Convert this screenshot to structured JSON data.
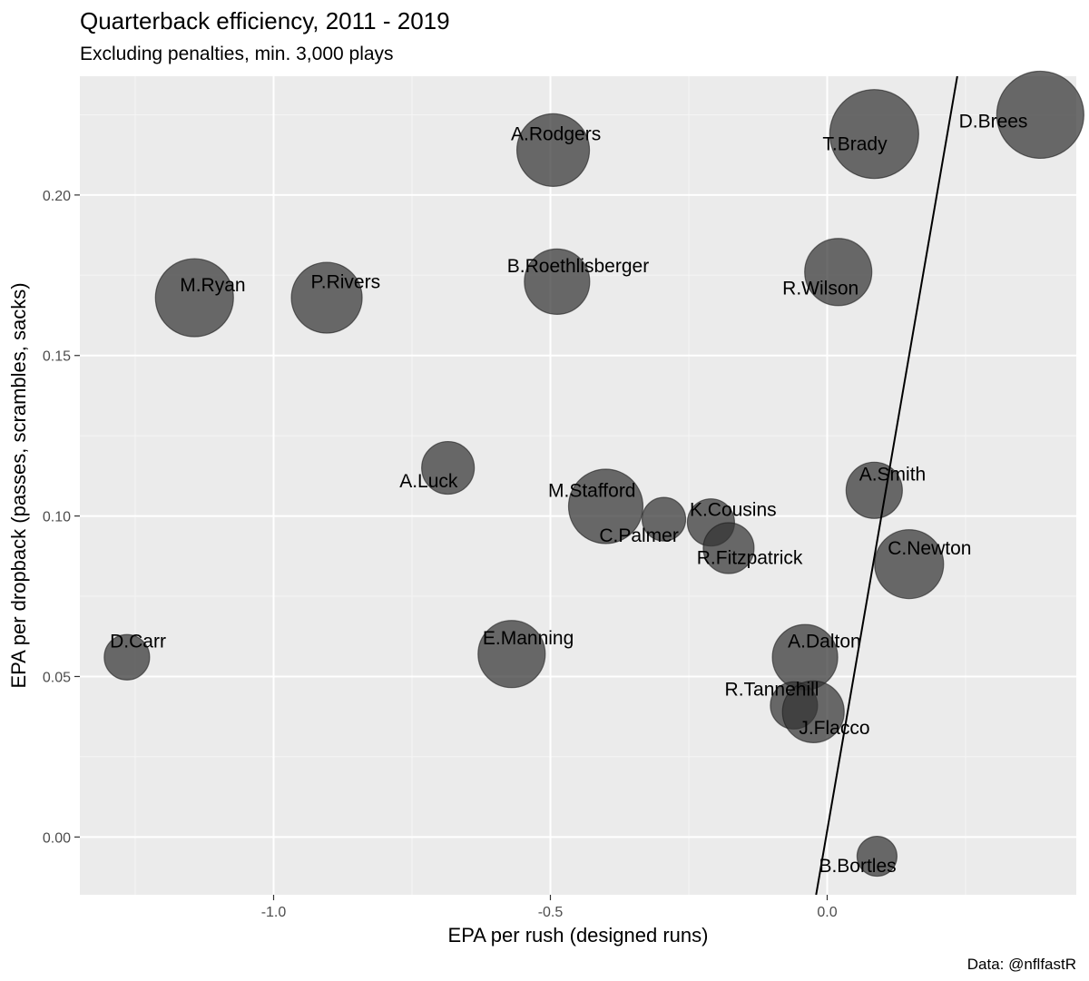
{
  "chart_data": {
    "type": "scatter",
    "title": "Quarterback efficiency, 2011 - 2019",
    "subtitle": "Excluding penalties, min. 3,000 plays",
    "xlabel": "EPA per rush (designed runs)",
    "ylabel": "EPA per dropback (passes, scrambles, sacks)",
    "caption": "Data: @nflfastR",
    "xlim": [
      -1.35,
      0.45
    ],
    "ylim": [
      -0.018,
      0.237
    ],
    "x_ticks": [
      -1.0,
      -0.5,
      0.0
    ],
    "x_tick_labels": [
      "-1.0",
      "-0.5",
      "0.0"
    ],
    "y_ticks": [
      0.0,
      0.05,
      0.1,
      0.15,
      0.2
    ],
    "y_tick_labels": [
      "0.00",
      "0.05",
      "0.10",
      "0.15",
      "0.20"
    ],
    "grid": true,
    "background": "#ebebeb",
    "point_color": "#333333",
    "reference_line": {
      "x1": -0.02,
      "y1": -0.018,
      "x2": 0.235,
      "y2": 0.237
    },
    "points": [
      {
        "name": "D.Brees",
        "x": 0.385,
        "y": 0.225,
        "size": 48
      },
      {
        "name": "T.Brady",
        "x": 0.085,
        "y": 0.219,
        "size": 49
      },
      {
        "name": "A.Rodgers",
        "x": -0.495,
        "y": 0.214,
        "size": 40
      },
      {
        "name": "R.Wilson",
        "x": 0.02,
        "y": 0.176,
        "size": 37
      },
      {
        "name": "B.Roethlisberger",
        "x": -0.488,
        "y": 0.173,
        "size": 36
      },
      {
        "name": "M.Ryan",
        "x": -1.143,
        "y": 0.168,
        "size": 43
      },
      {
        "name": "P.Rivers",
        "x": -0.904,
        "y": 0.168,
        "size": 39
      },
      {
        "name": "A.Luck",
        "x": -0.685,
        "y": 0.115,
        "size": 29
      },
      {
        "name": "A.Smith",
        "x": 0.085,
        "y": 0.108,
        "size": 31
      },
      {
        "name": "M.Stafford",
        "x": -0.4,
        "y": 0.103,
        "size": 41
      },
      {
        "name": "C.Palmer",
        "x": -0.295,
        "y": 0.099,
        "size": 24
      },
      {
        "name": "K.Cousins",
        "x": -0.21,
        "y": 0.098,
        "size": 26
      },
      {
        "name": "R.Fitzpatrick",
        "x": -0.178,
        "y": 0.09,
        "size": 28
      },
      {
        "name": "C.Newton",
        "x": 0.148,
        "y": 0.085,
        "size": 38
      },
      {
        "name": "E.Manning",
        "x": -0.57,
        "y": 0.057,
        "size": 37
      },
      {
        "name": "D.Carr",
        "x": -1.265,
        "y": 0.056,
        "size": 25
      },
      {
        "name": "A.Dalton",
        "x": -0.04,
        "y": 0.056,
        "size": 36
      },
      {
        "name": "R.Tannehill",
        "x": -0.06,
        "y": 0.041,
        "size": 26
      },
      {
        "name": "J.Flacco",
        "x": -0.025,
        "y": 0.039,
        "size": 34
      },
      {
        "name": "B.Bortles",
        "x": 0.09,
        "y": -0.006,
        "size": 22
      }
    ],
    "labels": [
      {
        "name": "D.Brees",
        "x": 0.3,
        "y": 0.221
      },
      {
        "name": "T.Brady",
        "x": 0.05,
        "y": 0.214
      },
      {
        "name": "A.Rodgers",
        "x": -0.49,
        "y": 0.217
      },
      {
        "name": "R.Wilson",
        "x": -0.012,
        "y": 0.169
      },
      {
        "name": "B.Roethlisberger",
        "x": -0.45,
        "y": 0.176
      },
      {
        "name": "M.Ryan",
        "x": -1.11,
        "y": 0.17
      },
      {
        "name": "P.Rivers",
        "x": -0.87,
        "y": 0.171
      },
      {
        "name": "A.Luck",
        "x": -0.72,
        "y": 0.109
      },
      {
        "name": "A.Smith",
        "x": 0.118,
        "y": 0.111
      },
      {
        "name": "M.Stafford",
        "x": -0.425,
        "y": 0.106
      },
      {
        "name": "C.Palmer",
        "x": -0.34,
        "y": 0.092
      },
      {
        "name": "K.Cousins",
        "x": -0.17,
        "y": 0.1
      },
      {
        "name": "R.Fitzpatrick",
        "x": -0.14,
        "y": 0.085
      },
      {
        "name": "C.Newton",
        "x": 0.185,
        "y": 0.088
      },
      {
        "name": "E.Manning",
        "x": -0.54,
        "y": 0.06
      },
      {
        "name": "D.Carr",
        "x": -1.245,
        "y": 0.059
      },
      {
        "name": "A.Dalton",
        "x": -0.005,
        "y": 0.059
      },
      {
        "name": "R.Tannehill",
        "x": -0.1,
        "y": 0.044
      },
      {
        "name": "J.Flacco",
        "x": 0.013,
        "y": 0.032
      },
      {
        "name": "B.Bortles",
        "x": 0.055,
        "y": -0.011
      }
    ]
  }
}
